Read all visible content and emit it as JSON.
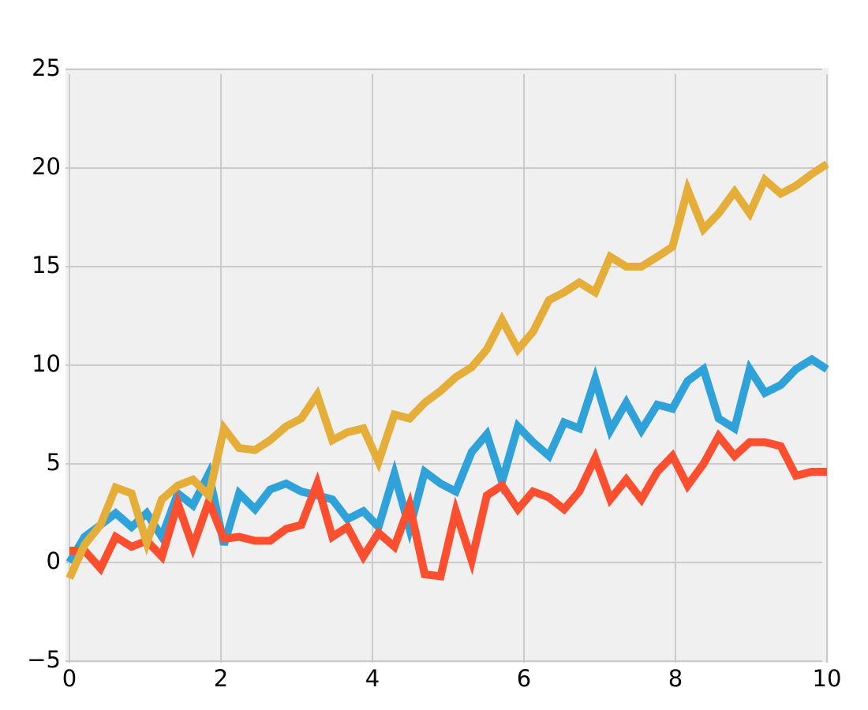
{
  "chart_data": {
    "type": "line",
    "x": [
      0,
      0.2,
      0.41,
      0.61,
      0.82,
      1.02,
      1.22,
      1.43,
      1.63,
      1.84,
      2.04,
      2.24,
      2.45,
      2.65,
      2.86,
      3.06,
      3.27,
      3.47,
      3.67,
      3.88,
      4.08,
      4.29,
      4.49,
      4.69,
      4.9,
      5.1,
      5.31,
      5.51,
      5.71,
      5.92,
      6.12,
      6.33,
      6.53,
      6.73,
      6.94,
      7.14,
      7.35,
      7.55,
      7.76,
      7.96,
      8.16,
      8.37,
      8.57,
      8.78,
      8.98,
      9.18,
      9.39,
      9.59,
      9.8,
      10
    ],
    "series": [
      {
        "color": "#30a2da",
        "values": [
          0.0,
          1.3,
          1.9,
          2.5,
          1.8,
          2.5,
          1.3,
          3.5,
          2.9,
          4.5,
          0.9,
          3.5,
          2.7,
          3.7,
          4.0,
          3.6,
          3.4,
          3.2,
          2.2,
          2.6,
          1.8,
          4.5,
          1.7,
          4.6,
          4.0,
          3.6,
          5.6,
          6.5,
          4.1,
          6.9,
          6.1,
          5.4,
          7.1,
          6.8,
          9.3,
          6.7,
          8.1,
          6.7,
          8.0,
          7.8,
          9.2,
          9.8,
          7.3,
          6.8,
          9.8,
          8.6,
          9.0,
          9.8,
          10.3,
          9.8
        ]
      },
      {
        "color": "#fc4f30",
        "values": [
          0.6,
          0.6,
          -0.3,
          1.3,
          0.8,
          1.1,
          0.3,
          3.0,
          0.8,
          3.1,
          1.2,
          1.3,
          1.1,
          1.1,
          1.7,
          1.9,
          4.0,
          1.3,
          1.8,
          0.3,
          1.5,
          0.8,
          2.9,
          -0.6,
          -0.7,
          2.6,
          0.1,
          3.4,
          3.9,
          2.7,
          3.6,
          3.3,
          2.7,
          3.6,
          5.3,
          3.2,
          4.2,
          3.2,
          4.6,
          5.4,
          3.9,
          5.0,
          6.4,
          5.4,
          6.1,
          6.1,
          5.9,
          4.4,
          4.6,
          4.6
        ]
      },
      {
        "color": "#e5ae38",
        "values": [
          -0.8,
          0.9,
          1.9,
          3.8,
          3.5,
          1.0,
          3.2,
          3.9,
          4.2,
          3.4,
          6.8,
          5.8,
          5.7,
          6.2,
          6.9,
          7.3,
          8.5,
          6.2,
          6.6,
          6.8,
          5.1,
          7.5,
          7.3,
          8.1,
          8.7,
          9.4,
          9.9,
          10.8,
          12.3,
          10.8,
          11.7,
          13.3,
          13.7,
          14.2,
          13.7,
          15.5,
          15.0,
          15.0,
          15.5,
          16.0,
          18.9,
          16.9,
          17.7,
          18.8,
          17.7,
          19.4,
          18.7,
          19.1,
          19.7,
          20.2
        ]
      }
    ],
    "xlim": [
      0,
      10
    ],
    "xticks": [
      0,
      2,
      4,
      6,
      8,
      10
    ],
    "ylim": [
      -5,
      25
    ],
    "yticks": [
      {
        "value": -5,
        "label": "−5"
      },
      0,
      5,
      10,
      15,
      20,
      25
    ],
    "grid": true
  }
}
